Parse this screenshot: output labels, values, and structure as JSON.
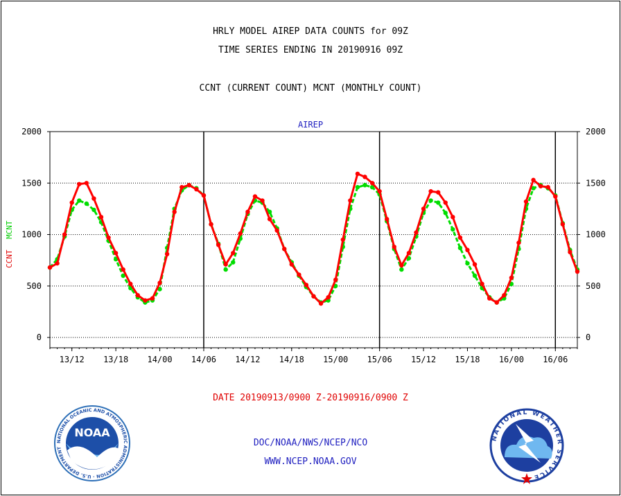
{
  "header": {
    "line1": "HRLY MODEL AIREP DATA COUNTS for 09Z",
    "line2": "TIME SERIES ENDING IN 20190916 09Z",
    "line3": "CCNT (CURRENT COUNT) MCNT (MONTHLY COUNT)"
  },
  "footer": {
    "date_range": "DATE 20190913/0900 Z-20190916/0900 Z",
    "agency": "DOC/NOAA/NWS/NCEP/NCO",
    "url": "WWW.NCEP.NOAA.GOV"
  },
  "logos": {
    "noaa_text": "NOAA",
    "noaa_ring": "NATIONAL OCEANIC AND ATMOSPHERIC ADMINISTRATION · U.S. DEPARTMENT OF COMMERCE ·",
    "nws_ring": "NATIONAL WEATHER SERVICE"
  },
  "chart_data": {
    "type": "line",
    "title": "AIREP",
    "ylabel_left": [
      "CCNT",
      "MCNT"
    ],
    "ylim": [
      -100,
      2000
    ],
    "yticks": [
      0,
      500,
      1000,
      1500,
      2000
    ],
    "x_range": [
      "2019-09-13 09:00",
      "2019-09-16 09:00"
    ],
    "x_tick_labels": [
      "13/12",
      "13/18",
      "14/00",
      "14/06",
      "14/12",
      "14/18",
      "15/00",
      "15/06",
      "15/12",
      "15/18",
      "16/00",
      "16/06"
    ],
    "x_tick_hours": [
      3,
      9,
      15,
      21,
      27,
      33,
      39,
      45,
      51,
      57,
      63,
      69
    ],
    "day_dividers_hours": [
      21,
      45,
      69
    ],
    "grid": "horizontal dotted at 500, 1000, 1500",
    "colors": {
      "ccnt": "#ff0000",
      "mcnt": "#00dd00"
    },
    "series": [
      {
        "name": "CCNT",
        "values": [
          680,
          720,
          1000,
          1310,
          1490,
          1500,
          1350,
          1170,
          970,
          820,
          660,
          520,
          410,
          360,
          380,
          530,
          810,
          1220,
          1460,
          1480,
          1440,
          1380,
          1100,
          900,
          710,
          820,
          1010,
          1220,
          1370,
          1330,
          1150,
          1040,
          860,
          710,
          610,
          510,
          400,
          330,
          390,
          560,
          950,
          1330,
          1590,
          1560,
          1500,
          1420,
          1150,
          880,
          700,
          820,
          1020,
          1250,
          1420,
          1410,
          1310,
          1170,
          970,
          850,
          710,
          520,
          380,
          340,
          410,
          580,
          920,
          1320,
          1530,
          1470,
          1460,
          1370,
          1100,
          830,
          640
        ]
      },
      {
        "name": "MCNT",
        "values": [
          680,
          760,
          980,
          1240,
          1330,
          1300,
          1240,
          1120,
          940,
          760,
          600,
          480,
          390,
          340,
          360,
          470,
          870,
          1250,
          1430,
          1480,
          1450,
          1380,
          1100,
          910,
          660,
          730,
          960,
          1200,
          1330,
          1310,
          1220,
          1060,
          860,
          730,
          600,
          490,
          400,
          340,
          360,
          500,
          880,
          1250,
          1460,
          1480,
          1460,
          1390,
          1130,
          860,
          660,
          770,
          980,
          1210,
          1330,
          1310,
          1210,
          1050,
          870,
          720,
          600,
          480,
          390,
          340,
          380,
          520,
          860,
          1250,
          1450,
          1480,
          1450,
          1380,
          1110,
          850,
          660
        ]
      }
    ]
  }
}
